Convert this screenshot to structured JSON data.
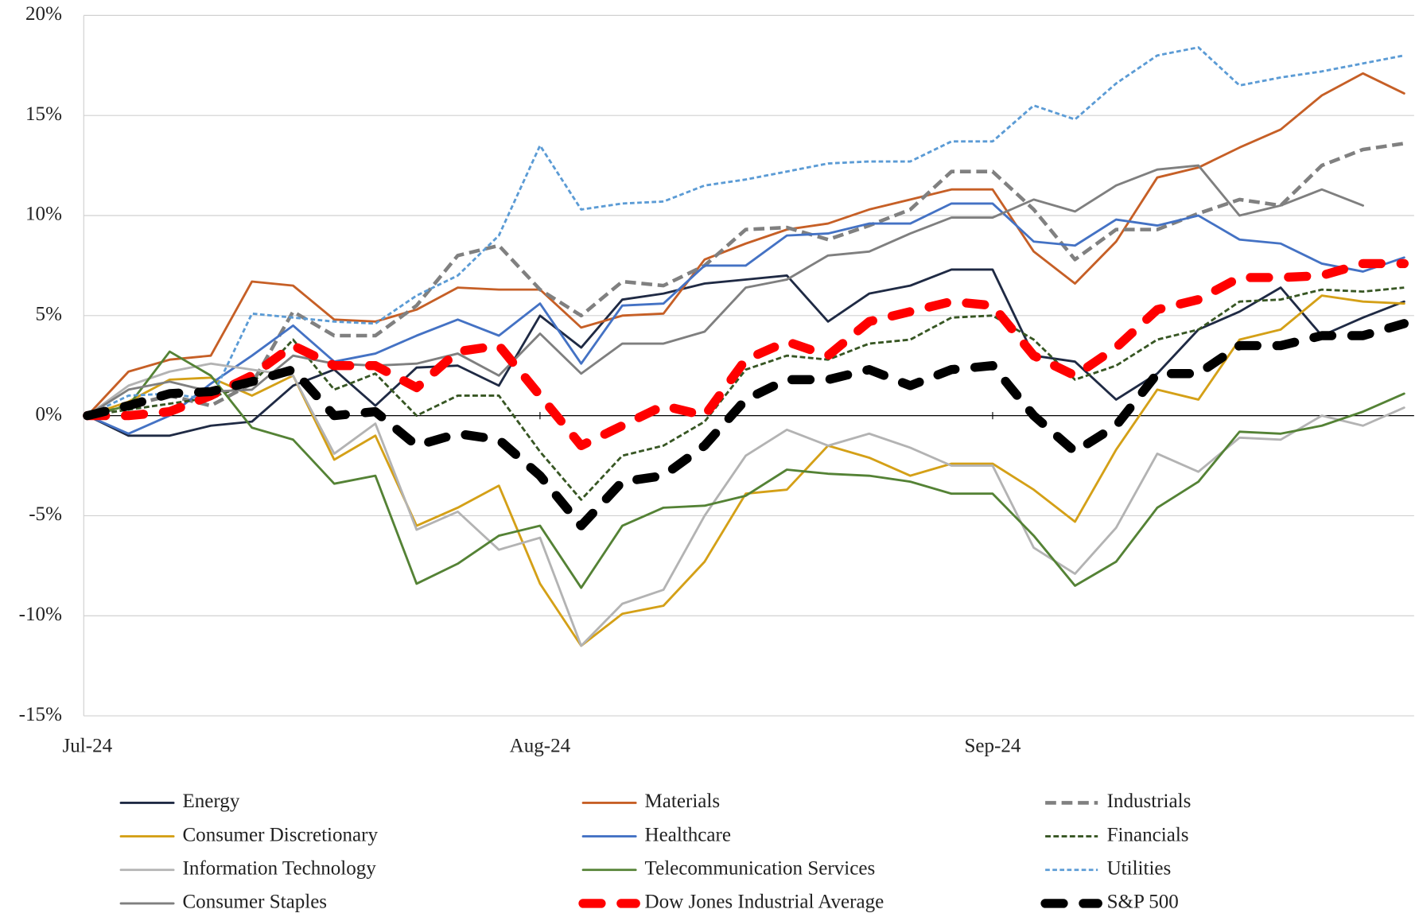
{
  "chart_data": {
    "type": "line",
    "categories": [
      "Jul-24",
      null,
      null,
      null,
      null,
      null,
      null,
      null,
      null,
      null,
      null,
      "Aug-24",
      null,
      null,
      null,
      null,
      null,
      null,
      null,
      null,
      null,
      null,
      "Sep-24",
      null,
      null,
      null,
      null,
      null,
      null,
      null,
      null,
      null,
      null
    ],
    "ylim": [
      -15,
      20
    ],
    "yticks": [
      {
        "value": -15,
        "label": "-15%"
      },
      {
        "value": -10,
        "label": "-10%"
      },
      {
        "value": -5,
        "label": "-5%"
      },
      {
        "value": 0,
        "label": "0%"
      },
      {
        "value": 5,
        "label": "5%"
      },
      {
        "value": 10,
        "label": "10%"
      },
      {
        "value": 15,
        "label": "15%"
      },
      {
        "value": 20,
        "label": "20%"
      }
    ],
    "grid": true,
    "series": [
      {
        "name": "Energy",
        "color": "#1f2a44",
        "style": "solid",
        "values": [
          0,
          -1.0,
          -1.0,
          -0.5,
          -0.3,
          1.5,
          2.3,
          0.5,
          2.4,
          2.5,
          1.5,
          5.0,
          3.4,
          5.8,
          6.1,
          6.6,
          6.8,
          7.0,
          4.7,
          6.1,
          6.5,
          7.3,
          7.3,
          3.0,
          2.7,
          0.8,
          2.1,
          4.3,
          5.2,
          6.4,
          4.0,
          4.9,
          5.7
        ]
      },
      {
        "name": "Materials",
        "color": "#c65f26",
        "style": "solid",
        "values": [
          0,
          2.2,
          2.8,
          3.0,
          6.7,
          6.5,
          4.8,
          4.7,
          5.3,
          6.4,
          6.3,
          6.3,
          4.4,
          5.0,
          5.1,
          7.8,
          8.6,
          9.3,
          9.6,
          10.3,
          10.8,
          11.3,
          11.3,
          8.2,
          6.6,
          8.7,
          11.9,
          12.4,
          13.4,
          14.3,
          16.0,
          17.1,
          16.1
        ]
      },
      {
        "name": "Industrials",
        "color": "#808080",
        "style": "dash",
        "values": [
          0,
          0.5,
          1.0,
          0.5,
          1.6,
          5.2,
          4.0,
          4.0,
          5.5,
          8.0,
          8.5,
          6.3,
          5.0,
          6.7,
          6.5,
          7.5,
          9.3,
          9.4,
          8.8,
          9.5,
          10.3,
          12.2,
          12.2,
          10.3,
          7.8,
          9.3,
          9.3,
          10.1,
          10.8,
          10.5,
          12.5,
          13.3,
          13.6
        ]
      },
      {
        "name": "Consumer Discretionary",
        "color": "#d4a017",
        "style": "solid",
        "values": [
          0,
          0.7,
          1.8,
          1.9,
          1.0,
          2.0,
          -2.2,
          -1.0,
          -5.5,
          -4.6,
          -3.5,
          -8.4,
          -11.5,
          -9.9,
          -9.5,
          -7.3,
          -3.9,
          -3.7,
          -1.5,
          -2.1,
          -3.0,
          -2.4,
          -2.4,
          -3.7,
          -5.3,
          -1.7,
          1.3,
          0.8,
          3.8,
          4.3,
          6.0,
          5.7,
          5.6
        ]
      },
      {
        "name": "Healthcare",
        "color": "#4472c4",
        "style": "solid",
        "values": [
          0,
          -0.9,
          0.0,
          1.6,
          3.0,
          4.5,
          2.7,
          3.1,
          4.0,
          4.8,
          4.0,
          5.6,
          2.6,
          5.5,
          5.6,
          7.5,
          7.5,
          9.0,
          9.1,
          9.6,
          9.6,
          10.6,
          10.6,
          8.7,
          8.5,
          9.8,
          9.5,
          10.0,
          8.8,
          8.6,
          7.6,
          7.2,
          7.9
        ]
      },
      {
        "name": "Financials",
        "color": "#375623",
        "style": "dash-thin",
        "values": [
          0,
          0.3,
          0.6,
          0.9,
          1.6,
          3.8,
          1.3,
          2.1,
          0.0,
          1.0,
          1.0,
          -1.8,
          -4.2,
          -2.0,
          -1.5,
          -0.3,
          2.3,
          3.0,
          2.8,
          3.6,
          3.8,
          4.9,
          5.0,
          3.8,
          1.8,
          2.5,
          3.8,
          4.3,
          5.7,
          5.8,
          6.3,
          6.2,
          6.4
        ]
      },
      {
        "name": "Information Technology",
        "color": "#b3b3b3",
        "style": "solid",
        "values": [
          0,
          1.5,
          2.2,
          2.6,
          2.3,
          2.0,
          -1.9,
          -0.4,
          -5.7,
          -4.8,
          -6.7,
          -6.1,
          -11.5,
          -9.4,
          -8.7,
          -5.0,
          -2.0,
          -0.7,
          -1.5,
          -0.9,
          -1.6,
          -2.5,
          -2.5,
          -6.6,
          -7.9,
          -5.6,
          -1.9,
          -2.8,
          -1.1,
          -1.2,
          0.0,
          -0.5,
          0.4
        ]
      },
      {
        "name": "Telecommunication Services",
        "color": "#548235",
        "style": "solid",
        "values": [
          0,
          0.5,
          3.2,
          2.0,
          -0.6,
          -1.2,
          -3.4,
          -3.0,
          -8.4,
          -7.4,
          -6.0,
          -5.5,
          -8.6,
          -5.5,
          -4.6,
          -4.5,
          -4.0,
          -2.7,
          -2.9,
          -3.0,
          -3.3,
          -3.9,
          -3.9,
          -6.0,
          -8.5,
          -7.3,
          -4.6,
          -3.3,
          -0.8,
          -0.9,
          -0.5,
          0.2,
          1.1
        ]
      },
      {
        "name": "Utilities",
        "color": "#5b9bd5",
        "style": "dot",
        "values": [
          0,
          1.0,
          1.1,
          0.8,
          5.1,
          4.9,
          4.7,
          4.6,
          6.0,
          7.0,
          9.0,
          13.5,
          10.3,
          10.6,
          10.7,
          11.5,
          11.8,
          12.2,
          12.6,
          12.7,
          12.7,
          13.7,
          13.7,
          15.5,
          14.8,
          16.6,
          18.0,
          18.4,
          16.5,
          16.9,
          17.2,
          17.6,
          18.0
        ]
      },
      {
        "name": "Consumer Staples",
        "color": "#7f7f7f",
        "style": "solid",
        "values": [
          0,
          1.3,
          1.7,
          1.2,
          1.3,
          3.0,
          2.6,
          2.5,
          2.6,
          3.1,
          2.0,
          4.1,
          2.1,
          3.6,
          3.6,
          4.2,
          6.4,
          6.8,
          8.0,
          8.2,
          9.1,
          9.9,
          9.9,
          10.8,
          10.2,
          11.5,
          12.3,
          12.5,
          10.0,
          10.5,
          11.3,
          10.5,
          null
        ]
      },
      {
        "name": "Dow Jones Industrial Average",
        "color": "#ff0000",
        "style": "heavy-dash",
        "values": [
          0,
          0.0,
          0.2,
          1.0,
          2.0,
          3.5,
          2.5,
          2.5,
          1.4,
          3.2,
          3.5,
          1.0,
          -1.5,
          -0.5,
          0.5,
          0.0,
          2.8,
          3.7,
          3.0,
          4.7,
          5.2,
          5.7,
          5.5,
          3.0,
          2.0,
          3.4,
          5.3,
          5.8,
          6.9,
          6.9,
          7.0,
          7.6,
          7.6
        ]
      },
      {
        "name": "S&P 500",
        "color": "#000000",
        "style": "heavy-dash",
        "values": [
          0,
          0.5,
          1.1,
          1.2,
          1.7,
          2.3,
          0.0,
          0.2,
          -1.5,
          -0.9,
          -1.2,
          -3.0,
          -5.5,
          -3.3,
          -3.0,
          -1.5,
          0.8,
          1.8,
          1.8,
          2.3,
          1.5,
          2.3,
          2.5,
          0.0,
          -1.8,
          -0.5,
          2.1,
          2.1,
          3.5,
          3.5,
          4.0,
          4.0,
          4.6
        ]
      }
    ]
  }
}
